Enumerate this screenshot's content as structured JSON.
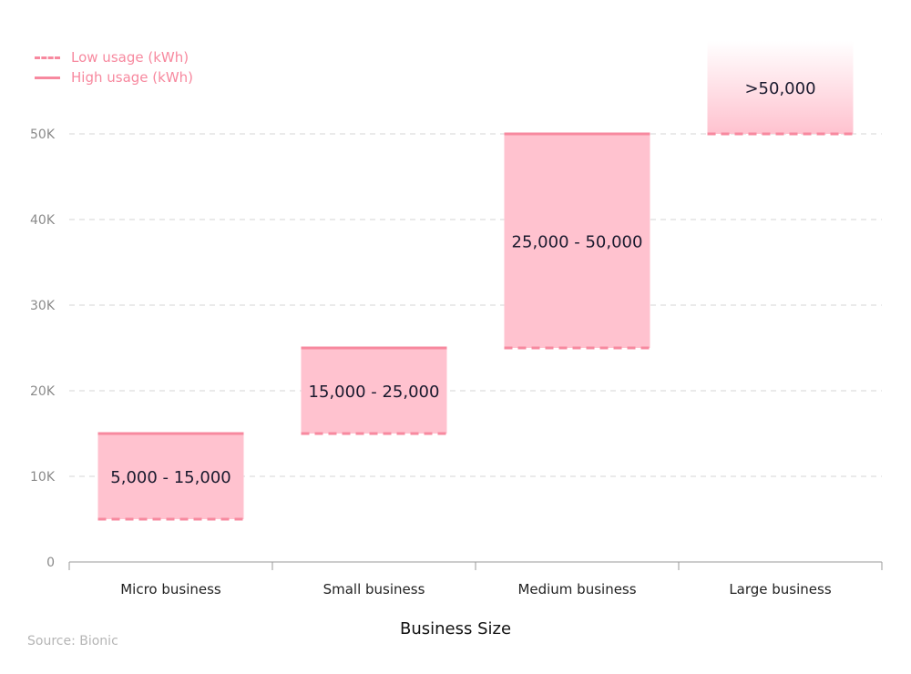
{
  "chart_data": {
    "type": "bar",
    "subtype": "floating-range",
    "xlabel": "Business Size",
    "ylabel": "",
    "categories": [
      "Micro business",
      "Small business",
      "Medium business",
      "Large business"
    ],
    "series": [
      {
        "name": "Low usage (kWh)",
        "values": [
          5000,
          15000,
          25000,
          50000
        ],
        "style": "dashed"
      },
      {
        "name": "High usage (kWh)",
        "values": [
          15000,
          25000,
          50000,
          null
        ],
        "style": "solid"
      }
    ],
    "bar_labels": [
      "5,000 - 15,000",
      "15,000 - 25,000",
      "25,000 - 50,000",
      ">50,000"
    ],
    "yticks": [
      0,
      10000,
      20000,
      30000,
      40000,
      50000
    ],
    "ytick_labels": [
      "0",
      "10K",
      "20K",
      "30K",
      "40K",
      "50K"
    ],
    "ylim": [
      0,
      60000
    ],
    "grid": true,
    "legend_position": "top-left",
    "colors": {
      "fill": "#ffc2cf",
      "line": "#f7899f",
      "grid": "#d6d6d6",
      "axis": "#9a9a9a",
      "text": "#1a1a2e"
    }
  },
  "source": "Source: Bionic"
}
